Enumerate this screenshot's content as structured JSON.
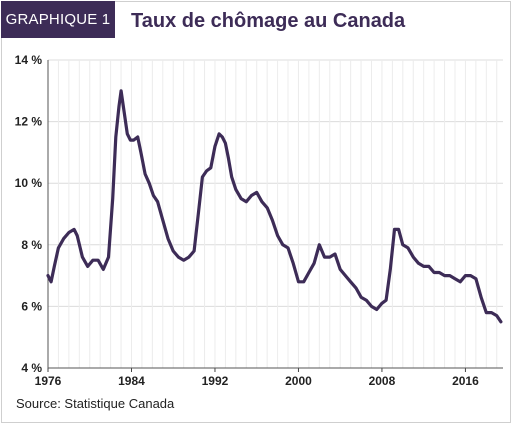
{
  "header": {
    "badge": "GRAPHIQUE 1",
    "title": "Taux de chômage au Canada"
  },
  "footer": {
    "source": "Source: Statistique Canada"
  },
  "chart_data": {
    "type": "line",
    "title": "Taux de chômage au Canada",
    "xlabel": "",
    "ylabel": "",
    "xlim": [
      1976,
      2019.6
    ],
    "ylim": [
      4,
      14
    ],
    "grid": true,
    "line_color": "#3d2c57",
    "y_ticks": [
      4,
      6,
      8,
      10,
      12,
      14
    ],
    "y_tick_labels": [
      "4 %",
      "6 %",
      "8 %",
      "10 %",
      "12 %",
      "14 %"
    ],
    "x_ticks": [
      1976,
      1984,
      1992,
      2000,
      2008,
      2016
    ],
    "x_tick_labels": [
      "1976",
      "1984",
      "1992",
      "2000",
      "2008",
      "2016"
    ],
    "series": [
      {
        "x": [
          1976.0,
          1976.3,
          1976.6,
          1977.0,
          1977.5,
          1978.0,
          1978.5,
          1978.8,
          1979.3,
          1979.8,
          1980.3,
          1980.8,
          1981.3,
          1981.8,
          1982.2,
          1982.5,
          1982.8,
          1983.0,
          1983.3,
          1983.6,
          1983.9,
          1984.2,
          1984.6,
          1984.9,
          1985.3,
          1985.7,
          1986.1,
          1986.5,
          1987.0,
          1987.5,
          1988.0,
          1988.5,
          1989.0,
          1989.5,
          1990.0,
          1990.4,
          1990.8,
          1991.2,
          1991.6,
          1992.0,
          1992.4,
          1992.7,
          1993.0,
          1993.3,
          1993.6,
          1994.0,
          1994.5,
          1995.0,
          1995.5,
          1996.0,
          1996.5,
          1997.0,
          1997.5,
          1998.0,
          1998.5,
          1999.0,
          1999.5,
          2000.0,
          2000.5,
          2001.0,
          2001.5,
          2002.0,
          2002.5,
          2003.0,
          2003.5,
          2004.0,
          2004.5,
          2005.0,
          2005.5,
          2006.0,
          2006.5,
          2007.0,
          2007.5,
          2008.0,
          2008.4,
          2008.8,
          2009.2,
          2009.6,
          2010.0,
          2010.5,
          2011.0,
          2011.5,
          2012.0,
          2012.5,
          2013.0,
          2013.5,
          2014.0,
          2014.5,
          2015.0,
          2015.5,
          2016.0,
          2016.5,
          2017.0,
          2017.5,
          2018.0,
          2018.5,
          2019.0,
          2019.4
        ],
        "y": [
          7.0,
          6.8,
          7.3,
          7.9,
          8.2,
          8.4,
          8.5,
          8.3,
          7.6,
          7.3,
          7.5,
          7.5,
          7.2,
          7.6,
          9.5,
          11.5,
          12.5,
          13.0,
          12.3,
          11.6,
          11.4,
          11.4,
          11.5,
          11.0,
          10.3,
          10.0,
          9.6,
          9.4,
          8.8,
          8.2,
          7.8,
          7.6,
          7.5,
          7.6,
          7.8,
          9.0,
          10.2,
          10.4,
          10.5,
          11.2,
          11.6,
          11.5,
          11.3,
          10.8,
          10.2,
          9.8,
          9.5,
          9.4,
          9.6,
          9.7,
          9.4,
          9.2,
          8.8,
          8.3,
          8.0,
          7.9,
          7.4,
          6.8,
          6.8,
          7.1,
          7.4,
          8.0,
          7.6,
          7.6,
          7.7,
          7.2,
          7.0,
          6.8,
          6.6,
          6.3,
          6.2,
          6.0,
          5.9,
          6.1,
          6.2,
          7.2,
          8.5,
          8.5,
          8.0,
          7.9,
          7.6,
          7.4,
          7.3,
          7.3,
          7.1,
          7.1,
          7.0,
          7.0,
          6.9,
          6.8,
          7.0,
          7.0,
          6.9,
          6.3,
          5.8,
          5.8,
          5.7,
          5.5
        ]
      }
    ]
  }
}
